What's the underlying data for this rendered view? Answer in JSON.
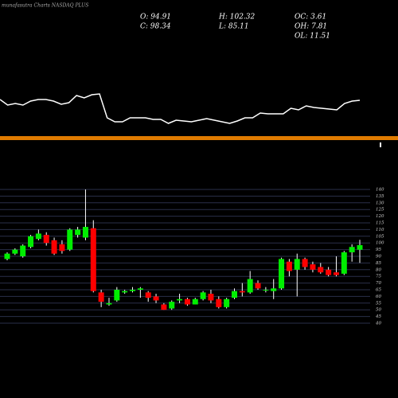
{
  "chart_data": [
    {
      "type": "candlestick",
      "title": "munafasutra Charts NASDAQ PLUS",
      "annotations": [
        "O: 94.91",
        "H: 102.32",
        "OC: 3.61",
        "C: 98.34",
        "L: 85.11",
        "OH: 7.81",
        "OL: 11.51"
      ],
      "up_color": "#00ee00",
      "down_color": "#ff0000",
      "grid": true,
      "ylim": [
        40,
        140
      ],
      "yticks": [
        40,
        45,
        50,
        55,
        60,
        65,
        70,
        75,
        80,
        85,
        90,
        95,
        100,
        105,
        110,
        115,
        120,
        125,
        130,
        135,
        140
      ],
      "open": [
        88,
        92,
        90,
        97,
        103,
        106,
        102,
        99,
        95,
        106,
        104,
        111,
        63,
        54,
        57,
        63,
        64,
        65,
        63,
        60,
        54,
        51,
        57,
        58,
        54,
        58,
        62,
        58,
        52,
        59,
        64,
        63,
        70,
        65,
        64,
        66,
        86,
        80,
        88,
        84,
        82,
        80,
        78,
        77,
        93,
        94.91
      ],
      "high": [
        93,
        96,
        99,
        106,
        110,
        108,
        104,
        102,
        111,
        112,
        140,
        117,
        65,
        59,
        67,
        65,
        67,
        67,
        64,
        62,
        55,
        57,
        62,
        59,
        59,
        64,
        65,
        60,
        59,
        66,
        70,
        79,
        72,
        67,
        73,
        89,
        88,
        92,
        89,
        86,
        85,
        82,
        90,
        94,
        99,
        102.32
      ],
      "low": [
        87,
        91,
        89,
        96,
        102,
        98,
        91,
        92,
        94,
        104,
        102,
        63,
        52,
        53,
        56,
        62,
        63,
        59,
        56,
        55,
        50,
        50,
        55,
        53,
        54,
        57,
        55,
        51,
        51,
        58,
        60,
        62,
        65,
        63,
        58,
        65,
        75,
        60,
        80,
        78,
        77,
        75,
        75,
        76,
        86,
        85.11
      ],
      "close": [
        92,
        95,
        98,
        105,
        107,
        100,
        92,
        94,
        110,
        110,
        112,
        64,
        56,
        55,
        65,
        64,
        65,
        66,
        59,
        57,
        50,
        56,
        58,
        54,
        58,
        63,
        57,
        52,
        58,
        64,
        63,
        73,
        66,
        65,
        66,
        88,
        79,
        88,
        82,
        80,
        78,
        76,
        76,
        93,
        97,
        98.34
      ]
    },
    {
      "type": "line",
      "color": "#ffffff",
      "values": [
        75,
        68,
        70,
        68,
        73,
        75,
        75,
        73,
        69,
        71,
        80,
        77,
        81,
        82,
        52,
        47,
        47,
        52,
        52,
        52,
        50,
        50,
        45,
        49,
        48,
        47,
        49,
        51,
        49,
        47,
        45,
        48,
        52,
        52,
        58,
        57,
        57,
        57,
        64,
        62,
        67,
        65,
        64,
        63,
        62,
        70,
        73,
        74
      ]
    }
  ]
}
